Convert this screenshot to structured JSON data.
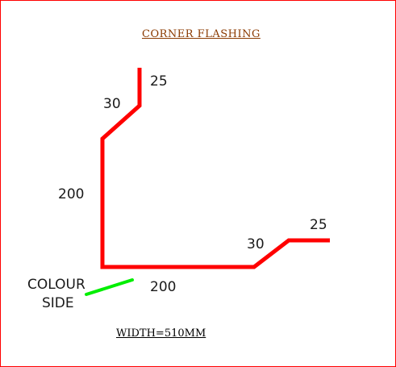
{
  "title": "CORNER  FLASHING",
  "footer": "WIDTH=510MM",
  "dimensions": {
    "top_lip": "25",
    "top_angle": "30",
    "vertical": "200",
    "horizontal": "200",
    "right_angle": "30",
    "right_lip": "25"
  },
  "colour_side": {
    "line1": "COLOUR",
    "line2": "SIDE"
  },
  "colors": {
    "flashing_profile": "#ff0000",
    "colour_side_marker": "#00ee00",
    "title": "#8b3a00",
    "border": "#ff0000"
  }
}
